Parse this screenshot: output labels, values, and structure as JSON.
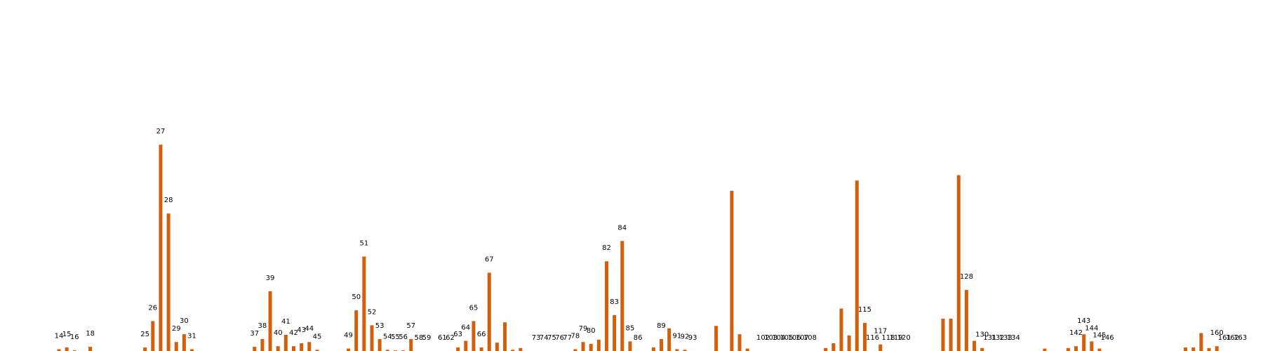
{
  "chart_data": {
    "type": "bar",
    "title": "",
    "xlabel": "",
    "ylabel": "",
    "ylim": [
      0,
      56
    ],
    "grid": false,
    "bar_color": "#d35f0c",
    "values": [
      0.3,
      0.6,
      0.1,
      null,
      0.7,
      null,
      null,
      null,
      null,
      null,
      null,
      0.6,
      5.0,
      34.5,
      23.0,
      1.5,
      2.8,
      0.3,
      null,
      null,
      null,
      null,
      null,
      null,
      null,
      0.7,
      2.0,
      10.0,
      0.8,
      2.7,
      0.8,
      1.3,
      1.5,
      0.2,
      null,
      null,
      null,
      0.4,
      6.8,
      15.8,
      4.3,
      2.0,
      0.2,
      0.1,
      0.1,
      2.0,
      null,
      null,
      null,
      null,
      null,
      0.6,
      1.7,
      5.0,
      0.6,
      13.1,
      1.4,
      4.8,
      0.2,
      0.5,
      null,
      null,
      null,
      null,
      null,
      null,
      0.3,
      1.5,
      1.2,
      1.9,
      15.0,
      6.0,
      18.4,
      1.6,
      null,
      null,
      0.6,
      2.0,
      3.8,
      0.3,
      0.2,
      null,
      null,
      null,
      4.2,
      null,
      26.8,
      2.8,
      0.4,
      null,
      null,
      null,
      null,
      null,
      null,
      null,
      null,
      null,
      0.5,
      1.3,
      7.1,
      2.6,
      28.5,
      4.7,
      null,
      1.1,
      null,
      null,
      null,
      null,
      null,
      null,
      null,
      5.4,
      5.4,
      29.4,
      10.2,
      1.7,
      0.5,
      null,
      null,
      null,
      null,
      null,
      null,
      null,
      0.4,
      null,
      null,
      0.5,
      0.8,
      2.8,
      1.6,
      0.4,
      null,
      null,
      null,
      null,
      null,
      null,
      null,
      null,
      null,
      null,
      0.6,
      0.6,
      3.0,
      0.5,
      0.8,
      null,
      null,
      null,
      null,
      null,
      null,
      null,
      null,
      null,
      null,
      null,
      null,
      null,
      11.8,
      29.8,
      3.2,
      0.1
    ],
    "bar_labels": [
      {
        "index": 0,
        "text": "14"
      },
      {
        "index": 1,
        "text": "15"
      },
      {
        "index": 2,
        "text": "16"
      },
      {
        "index": 4,
        "text": "18"
      },
      {
        "index": 11,
        "text": "25"
      },
      {
        "index": 12,
        "text": "26"
      },
      {
        "index": 13,
        "text": "27"
      },
      {
        "index": 14,
        "text": "28"
      },
      {
        "index": 15,
        "text": "29"
      },
      {
        "index": 16,
        "text": "30"
      },
      {
        "index": 17,
        "text": "31"
      },
      {
        "index": 25,
        "text": "37"
      },
      {
        "index": 26,
        "text": "38"
      },
      {
        "index": 27,
        "text": "39"
      },
      {
        "index": 28,
        "text": "40"
      },
      {
        "index": 29,
        "text": "41"
      },
      {
        "index": 30,
        "text": "42"
      },
      {
        "index": 31,
        "text": "43"
      },
      {
        "index": 32,
        "text": "44"
      },
      {
        "index": 33,
        "text": "45"
      },
      {
        "index": 37,
        "text": "49"
      },
      {
        "index": 38,
        "text": "50"
      },
      {
        "index": 39,
        "text": "51"
      },
      {
        "index": 40,
        "text": "52"
      },
      {
        "index": 41,
        "text": "53"
      },
      {
        "index": 42,
        "text": "54"
      },
      {
        "index": 43,
        "text": "55"
      },
      {
        "index": 44,
        "text": "56"
      },
      {
        "index": 45,
        "text": "57"
      },
      {
        "index": 46,
        "text": "58"
      },
      {
        "index": 47,
        "text": "59"
      },
      {
        "index": 49,
        "text": "61"
      },
      {
        "index": 50,
        "text": "62"
      },
      {
        "index": 51,
        "text": "63"
      },
      {
        "index": 52,
        "text": "64"
      },
      {
        "index": 53,
        "text": "65"
      },
      {
        "index": 54,
        "text": "66"
      },
      {
        "index": 55,
        "text": "67"
      },
      {
        "index": 61,
        "text": "73"
      },
      {
        "index": 62,
        "text": "74"
      },
      {
        "index": 63,
        "text": "75"
      },
      {
        "index": 64,
        "text": "76"
      },
      {
        "index": 65,
        "text": "77"
      },
      {
        "index": 66,
        "text": "78"
      },
      {
        "index": 67,
        "text": "79"
      },
      {
        "index": 68,
        "text": "80"
      },
      {
        "index": 70,
        "text": "82"
      },
      {
        "index": 71,
        "text": "83"
      },
      {
        "index": 72,
        "text": "84"
      },
      {
        "index": 73,
        "text": "85"
      },
      {
        "index": 74,
        "text": "86"
      },
      {
        "index": 77,
        "text": "89"
      },
      {
        "index": 79,
        "text": "91"
      },
      {
        "index": 80,
        "text": "92"
      },
      {
        "index": 81,
        "text": "93"
      },
      {
        "index": 90,
        "text": "102"
      },
      {
        "index": 91,
        "text": "103"
      },
      {
        "index": 92,
        "text": "104"
      },
      {
        "index": 93,
        "text": "105"
      },
      {
        "index": 94,
        "text": "106"
      },
      {
        "index": 95,
        "text": "107"
      },
      {
        "index": 96,
        "text": "108"
      },
      {
        "index": 103,
        "text": "115"
      },
      {
        "index": 104,
        "text": "116"
      },
      {
        "index": 105,
        "text": "117"
      },
      {
        "index": 106,
        "text": "118"
      },
      {
        "index": 107,
        "text": "119"
      },
      {
        "index": 108,
        "text": "120"
      },
      {
        "index": 116,
        "text": "128"
      },
      {
        "index": 118,
        "text": "130"
      },
      {
        "index": 119,
        "text": "131"
      },
      {
        "index": 120,
        "text": "132"
      },
      {
        "index": 121,
        "text": "133"
      },
      {
        "index": 122,
        "text": "134"
      },
      {
        "index": 130,
        "text": "142"
      },
      {
        "index": 131,
        "text": "143"
      },
      {
        "index": 132,
        "text": "144"
      },
      {
        "index": 133,
        "text": "145"
      },
      {
        "index": 134,
        "text": "146"
      },
      {
        "index": 148,
        "text": "160"
      },
      {
        "index": 149,
        "text": "161"
      },
      {
        "index": 150,
        "text": "162"
      },
      {
        "index": 151,
        "text": "163"
      }
    ]
  }
}
